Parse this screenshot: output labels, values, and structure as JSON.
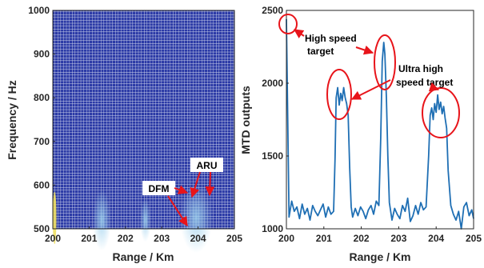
{
  "chart_data": [
    {
      "type": "heatmap",
      "xlabel": "Range / Km",
      "ylabel": "Frequency / Hz",
      "xlim": [
        200,
        205
      ],
      "ylim": [
        500,
        1000
      ],
      "x_ticks": [
        "200",
        "201",
        "202",
        "203",
        "204",
        "205"
      ],
      "y_ticks": [
        "500",
        "600",
        "700",
        "800",
        "900",
        "1000"
      ],
      "grid": true,
      "background_color": "#2b3aa6",
      "blobs": [
        {
          "x": 200.05,
          "y": 525,
          "w": 0.05,
          "h": 60,
          "color": "#f0e060"
        },
        {
          "x": 201.35,
          "y": 520,
          "w": 0.25,
          "h": 70,
          "color": "#8ec8e8"
        },
        {
          "x": 202.55,
          "y": 520,
          "w": 0.15,
          "h": 50,
          "color": "#8ec8e8"
        },
        {
          "x": 203.95,
          "y": 525,
          "w": 0.45,
          "h": 80,
          "color": "#8ec8e8"
        }
      ],
      "annotations": [
        {
          "text": "ARU",
          "x": 203.85,
          "y": 645
        },
        {
          "text": "DFM",
          "x": 202.8,
          "y": 590
        }
      ]
    },
    {
      "type": "line",
      "xlabel": "Range / Km",
      "ylabel": "MTD outputs",
      "xlim": [
        200,
        205
      ],
      "ylim": [
        1000,
        2500
      ],
      "x_ticks": [
        "200",
        "201",
        "202",
        "203",
        "204",
        "205"
      ],
      "y_ticks": [
        "1000",
        "1500",
        "2000",
        "2500"
      ],
      "grid": false,
      "color": "#1f6fb4",
      "x": [
        200.0,
        200.07,
        200.14,
        200.21,
        200.28,
        200.35,
        200.42,
        200.49,
        200.56,
        200.63,
        200.7,
        200.77,
        200.84,
        200.91,
        200.98,
        201.05,
        201.12,
        201.19,
        201.26,
        201.3,
        201.33,
        201.37,
        201.41,
        201.45,
        201.49,
        201.53,
        201.57,
        201.61,
        201.65,
        201.69,
        201.73,
        201.77,
        201.84,
        201.91,
        201.98,
        202.05,
        202.12,
        202.19,
        202.26,
        202.33,
        202.4,
        202.47,
        202.52,
        202.56,
        202.6,
        202.63,
        202.67,
        202.71,
        202.75,
        202.82,
        202.89,
        202.96,
        203.03,
        203.1,
        203.17,
        203.24,
        203.31,
        203.38,
        203.45,
        203.52,
        203.59,
        203.66,
        203.73,
        203.8,
        203.84,
        203.88,
        203.92,
        203.96,
        204.0,
        204.04,
        204.08,
        204.12,
        204.16,
        204.2,
        204.24,
        204.28,
        204.32,
        204.39,
        204.46,
        204.53,
        204.6,
        204.67,
        204.74,
        204.81,
        204.88,
        204.95,
        205.0
      ],
      "y": [
        2440,
        1080,
        1190,
        1120,
        1150,
        1070,
        1170,
        1100,
        1140,
        1060,
        1160,
        1120,
        1090,
        1130,
        1170,
        1080,
        1150,
        1100,
        1120,
        1480,
        1900,
        1970,
        1850,
        1930,
        1880,
        1970,
        1900,
        1860,
        1780,
        1420,
        1150,
        1080,
        1140,
        1090,
        1150,
        1120,
        1070,
        1130,
        1160,
        1100,
        1190,
        1160,
        1620,
        2150,
        2280,
        2200,
        1900,
        1500,
        1180,
        1060,
        1140,
        1100,
        1070,
        1160,
        1120,
        1210,
        1050,
        1090,
        1160,
        1100,
        1180,
        1130,
        1150,
        1500,
        1780,
        1830,
        1750,
        1860,
        1800,
        1920,
        1820,
        1870,
        1790,
        1840,
        1760,
        1690,
        1400,
        1160,
        1100,
        1060,
        1120,
        1000,
        1150,
        1180,
        1090,
        1130,
        1070
      ]
    }
  ],
  "right_annotations": {
    "high_speed_line1": "High speed",
    "high_speed_line2": "target",
    "ultra_line1": "Ultra high",
    "ultra_line2": "speed target"
  }
}
